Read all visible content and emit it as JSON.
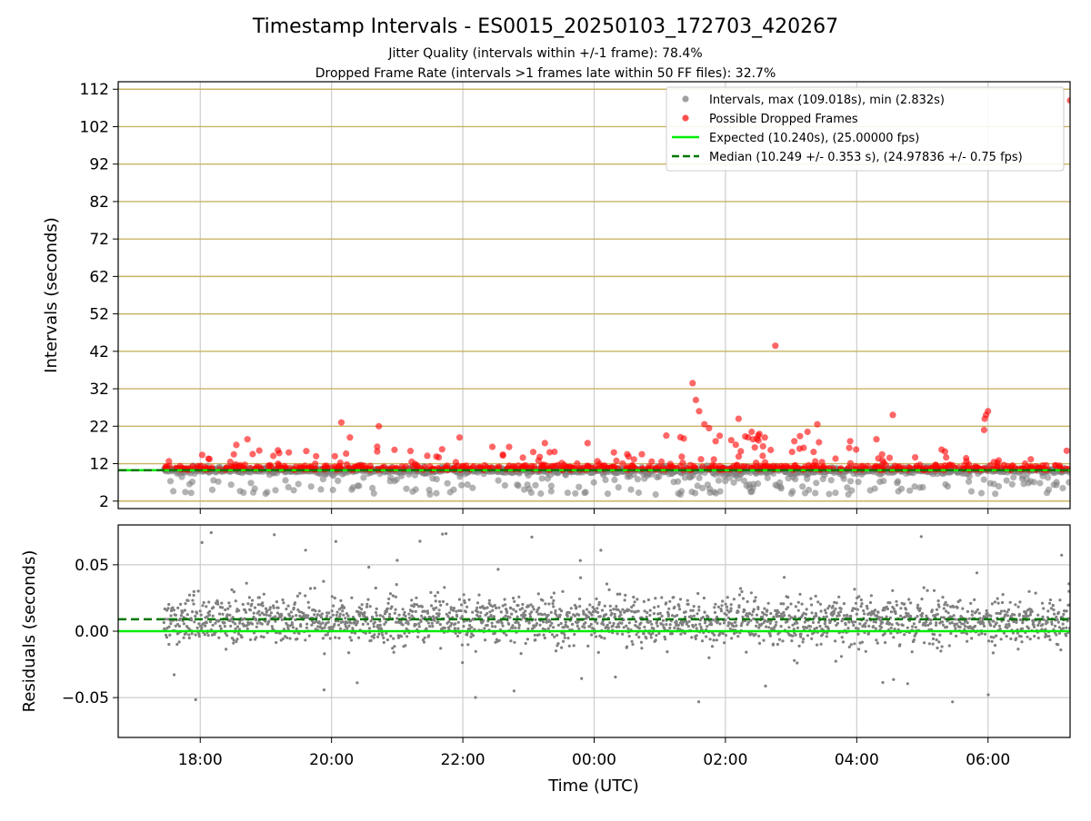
{
  "title": "Timestamp Intervals - ES0015_20250103_172703_420267",
  "subtitle_line1": "Jitter Quality (intervals within +/-1 frame): 78.4%",
  "subtitle_line2": "Dropped Frame Rate (intervals >1 frames late within 50 FF files): 32.7%",
  "colors": {
    "interval_points": "#808080",
    "dropped_points": "#ff0000",
    "expected_line": "#00ee00",
    "median_line": "#007700",
    "gridline": "#c8b464"
  },
  "chart_data": [
    {
      "type": "scatter",
      "panel": "top",
      "ylabel": "Intervals (seconds)",
      "xlabel": "",
      "grid": true,
      "legend_placement": "top-right",
      "xlim_hours": [
        16.75,
        31.25
      ],
      "ylim": [
        0,
        114
      ],
      "yticks": [
        "112",
        "102",
        "92",
        "82",
        "72",
        "62",
        "52",
        "42",
        "32",
        "22",
        "12",
        "2"
      ],
      "ytick_values": [
        112,
        102,
        92,
        82,
        72,
        62,
        52,
        42,
        32,
        22,
        12,
        2
      ],
      "xticks": [
        "18:00",
        "20:00",
        "22:00",
        "00:00",
        "02:00",
        "04:00",
        "06:00"
      ],
      "xtick_hours": [
        18,
        20,
        22,
        24,
        26,
        28,
        30
      ],
      "expected": 10.24,
      "median": 10.249,
      "data_span_hours": [
        17.45,
        31.25
      ],
      "typical_interval": 10.24,
      "series": [
        {
          "name": "Intervals, max (109.018s), min (2.832s)",
          "color": "#808080"
        },
        {
          "name": "Possible Dropped Frames",
          "color": "#ff0000"
        }
      ],
      "lines": [
        {
          "name": "Expected (10.240s), (25.00000 fps)",
          "value": 10.24,
          "style": "solid",
          "color": "#00ee00"
        },
        {
          "name": "Median (10.249 +/- 0.353 s), (24.97836 +/- 0.75 fps)",
          "value": 10.249,
          "style": "dashed",
          "color": "#007700"
        }
      ],
      "dropped_outliers": [
        {
          "x": 18.55,
          "y": 17.0
        },
        {
          "x": 18.72,
          "y": 18.5
        },
        {
          "x": 18.9,
          "y": 15.5
        },
        {
          "x": 19.35,
          "y": 15.0
        },
        {
          "x": 20.15,
          "y": 23.0
        },
        {
          "x": 20.28,
          "y": 19.0
        },
        {
          "x": 20.72,
          "y": 22.0
        },
        {
          "x": 21.95,
          "y": 19.0
        },
        {
          "x": 22.45,
          "y": 16.5
        },
        {
          "x": 23.25,
          "y": 17.5
        },
        {
          "x": 23.9,
          "y": 17.5
        },
        {
          "x": 24.3,
          "y": 15.0
        },
        {
          "x": 25.1,
          "y": 19.5
        },
        {
          "x": 25.5,
          "y": 33.5
        },
        {
          "x": 25.55,
          "y": 29.0
        },
        {
          "x": 25.6,
          "y": 26.0
        },
        {
          "x": 25.68,
          "y": 22.5
        },
        {
          "x": 25.75,
          "y": 21.5
        },
        {
          "x": 25.85,
          "y": 18.0
        },
        {
          "x": 26.2,
          "y": 24.0
        },
        {
          "x": 26.4,
          "y": 20.5
        },
        {
          "x": 26.5,
          "y": 19.5
        },
        {
          "x": 26.6,
          "y": 19.0
        },
        {
          "x": 26.76,
          "y": 43.5
        },
        {
          "x": 27.05,
          "y": 18.0
        },
        {
          "x": 27.25,
          "y": 20.5
        },
        {
          "x": 27.4,
          "y": 22.5
        },
        {
          "x": 27.9,
          "y": 18.0
        },
        {
          "x": 28.3,
          "y": 18.5
        },
        {
          "x": 28.55,
          "y": 25.0
        },
        {
          "x": 29.95,
          "y": 24.0
        },
        {
          "x": 29.97,
          "y": 25.0
        },
        {
          "x": 30.0,
          "y": 26.0
        },
        {
          "x": 29.94,
          "y": 21.0
        },
        {
          "x": 31.25,
          "y": 109.0
        }
      ]
    },
    {
      "type": "scatter",
      "panel": "bottom",
      "ylabel": "Residuals (seconds)",
      "xlabel": "Time (UTC)",
      "grid": true,
      "xlim_hours": [
        16.75,
        31.25
      ],
      "ylim": [
        -0.08,
        0.08
      ],
      "yticks": [
        "0.05",
        "0.00",
        "−0.05"
      ],
      "ytick_values": [
        0.05,
        0.0,
        -0.05
      ],
      "xticks": [
        "18:00",
        "20:00",
        "22:00",
        "00:00",
        "02:00",
        "04:00",
        "06:00"
      ],
      "xtick_hours": [
        18,
        20,
        22,
        24,
        26,
        28,
        30
      ],
      "expected_residual": 0.0,
      "median_residual": 0.009,
      "series": [
        {
          "color": "#808080"
        }
      ]
    }
  ],
  "legend": [
    {
      "label": "Intervals, max (109.018s), min (2.832s)",
      "kind": "dot",
      "color": "#a0a0a0"
    },
    {
      "label": "Possible Dropped Frames",
      "kind": "dot",
      "color": "#ff5050"
    },
    {
      "label": "Expected (10.240s), (25.00000 fps)",
      "kind": "line",
      "color": "#00ee00"
    },
    {
      "label": "Median (10.249 +/- 0.353 s), (24.97836 +/- 0.75 fps)",
      "kind": "dash",
      "color": "#007700"
    }
  ]
}
